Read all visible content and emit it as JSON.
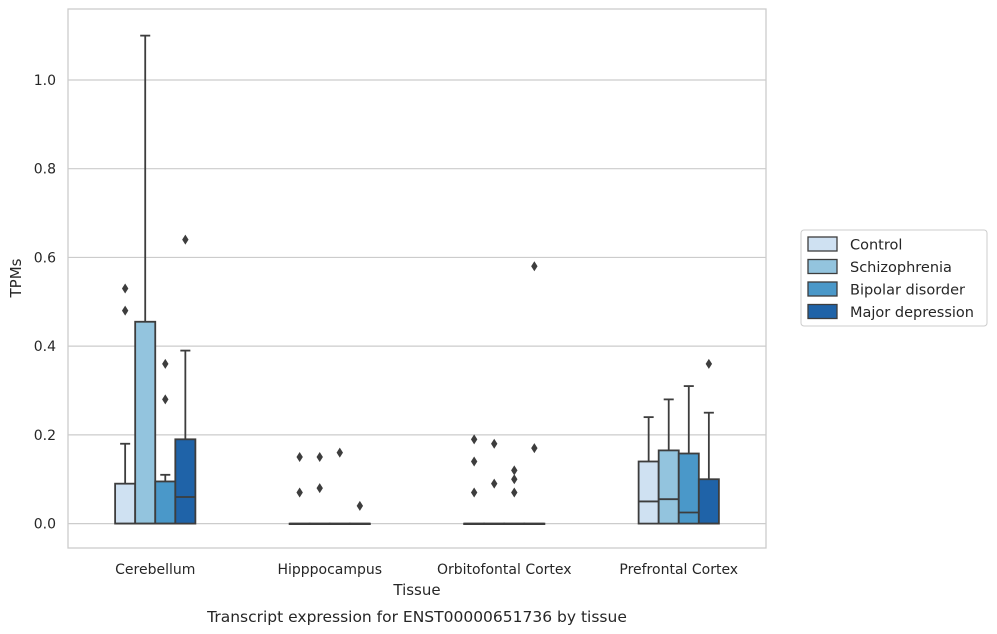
{
  "chart_data": {
    "type": "box",
    "xlabel": "Tissue",
    "ylabel": "TPMs",
    "caption": "Transcript expression for ENST00000651736 by tissue",
    "ylim": [
      -0.055,
      1.16
    ],
    "yticks": [
      0.0,
      0.2,
      0.4,
      0.6,
      0.8,
      1.0
    ],
    "ytick_labels": [
      "0.0",
      "0.2",
      "0.4",
      "0.6",
      "0.8",
      "1.0"
    ],
    "grid": "horizontal",
    "legend_position": "right",
    "categories": [
      "Cerebellum",
      "Hipppocampus",
      "Orbitofontal Cortex",
      "Prefrontal Cortex"
    ],
    "series": [
      {
        "name": "Control",
        "color": "#cfe1f2",
        "boxes": [
          {
            "q1": 0.0,
            "median": 0.0,
            "q3": 0.09,
            "whisker_low": 0.0,
            "whisker_high": 0.18,
            "outliers": [
              0.48,
              0.53
            ]
          },
          {
            "q1": 0.0,
            "median": 0.0,
            "q3": 0.0,
            "whisker_low": 0.0,
            "whisker_high": 0.0,
            "outliers": [
              0.07,
              0.15
            ]
          },
          {
            "q1": 0.0,
            "median": 0.0,
            "q3": 0.0,
            "whisker_low": 0.0,
            "whisker_high": 0.0,
            "outliers": [
              0.07,
              0.14,
              0.19
            ]
          },
          {
            "q1": 0.0,
            "median": 0.05,
            "q3": 0.14,
            "whisker_low": 0.0,
            "whisker_high": 0.24,
            "outliers": []
          }
        ]
      },
      {
        "name": "Schizophrenia",
        "color": "#93c4de",
        "boxes": [
          {
            "q1": 0.0,
            "median": 0.0,
            "q3": 0.455,
            "whisker_low": 0.0,
            "whisker_high": 1.1,
            "outliers": []
          },
          {
            "q1": 0.0,
            "median": 0.0,
            "q3": 0.0,
            "whisker_low": 0.0,
            "whisker_high": 0.0,
            "outliers": [
              0.08,
              0.15
            ]
          },
          {
            "q1": 0.0,
            "median": 0.0,
            "q3": 0.0,
            "whisker_low": 0.0,
            "whisker_high": 0.0,
            "outliers": [
              0.09,
              0.18
            ]
          },
          {
            "q1": 0.0,
            "median": 0.055,
            "q3": 0.165,
            "whisker_low": 0.0,
            "whisker_high": 0.28,
            "outliers": []
          }
        ]
      },
      {
        "name": "Bipolar disorder",
        "color": "#4a98c9",
        "boxes": [
          {
            "q1": 0.0,
            "median": 0.0,
            "q3": 0.095,
            "whisker_low": 0.0,
            "whisker_high": 0.11,
            "outliers": [
              0.28,
              0.36
            ]
          },
          {
            "q1": 0.0,
            "median": 0.0,
            "q3": 0.0,
            "whisker_low": 0.0,
            "whisker_high": 0.0,
            "outliers": [
              0.16
            ]
          },
          {
            "q1": 0.0,
            "median": 0.0,
            "q3": 0.0,
            "whisker_low": 0.0,
            "whisker_high": 0.0,
            "outliers": [
              0.07,
              0.1,
              0.12
            ]
          },
          {
            "q1": 0.0,
            "median": 0.025,
            "q3": 0.158,
            "whisker_low": 0.0,
            "whisker_high": 0.31,
            "outliers": []
          }
        ]
      },
      {
        "name": "Major depression",
        "color": "#1f63a8",
        "boxes": [
          {
            "q1": 0.0,
            "median": 0.06,
            "q3": 0.19,
            "whisker_low": 0.0,
            "whisker_high": 0.39,
            "outliers": [
              0.64
            ]
          },
          {
            "q1": 0.0,
            "median": 0.0,
            "q3": 0.0,
            "whisker_low": 0.0,
            "whisker_high": 0.0,
            "outliers": [
              0.04
            ]
          },
          {
            "q1": 0.0,
            "median": 0.0,
            "q3": 0.0,
            "whisker_low": 0.0,
            "whisker_high": 0.0,
            "outliers": [
              0.17,
              0.58
            ]
          },
          {
            "q1": 0.0,
            "median": 0.0,
            "q3": 0.1,
            "whisker_low": 0.0,
            "whisker_high": 0.25,
            "outliers": [
              0.36
            ]
          }
        ]
      }
    ]
  }
}
